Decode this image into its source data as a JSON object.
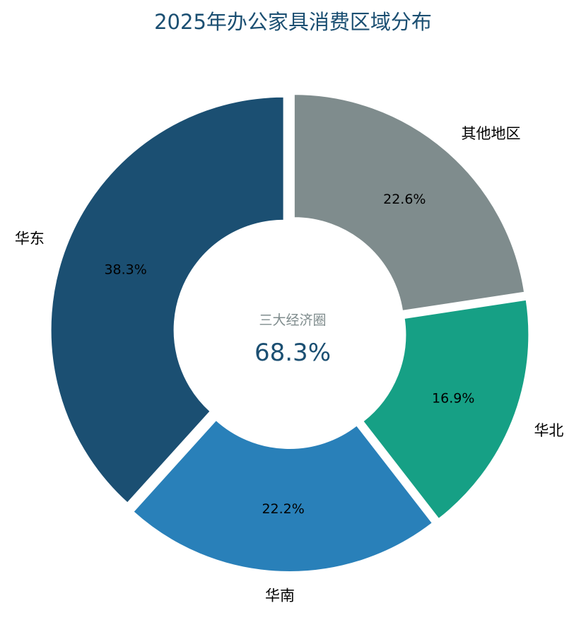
{
  "chart_data": {
    "type": "pie",
    "title": "2025年办公家具消费区域分布",
    "categories": [
      "华东",
      "华南",
      "华北",
      "其他地区"
    ],
    "values": [
      38.3,
      22.2,
      16.9,
      22.6
    ],
    "value_labels": [
      "38.3%",
      "22.2%",
      "16.9%",
      "22.6%"
    ],
    "colors": [
      "#1b4f72",
      "#2980b9",
      "#16a085",
      "#7f8c8d"
    ],
    "donut": true,
    "start": "top",
    "direction": "counterclockwise",
    "exploded": true,
    "center_text": {
      "label": "三大经济圈",
      "value": "68.3%"
    }
  }
}
